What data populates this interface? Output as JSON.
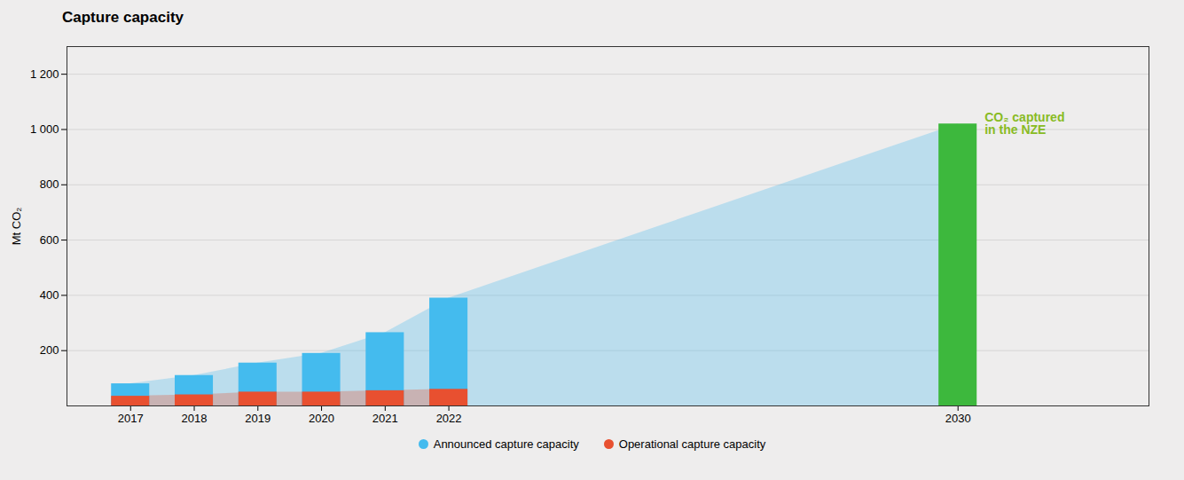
{
  "chart_data": {
    "type": "bar",
    "title": "Capture capacity",
    "y_label": "Mt CO₂",
    "background": "#eeeded",
    "x": [
      2017,
      2018,
      2019,
      2020,
      2021,
      2022,
      2030
    ],
    "series": [
      {
        "name": "Announced capture capacity",
        "color": "#44bbee",
        "values": [
          80,
          110,
          155,
          190,
          265,
          390,
          null
        ]
      },
      {
        "name": "Operational capture capacity",
        "color": "#e85030",
        "values": [
          35,
          40,
          50,
          50,
          55,
          60,
          null
        ]
      },
      {
        "color": "#3db83d",
        "values": [
          null,
          null,
          null,
          null,
          null,
          null,
          1020
        ]
      }
    ],
    "annotations": [
      {
        "x": 2030,
        "y": 1020,
        "lines": [
          "CO₂ captured",
          "in the NZE"
        ],
        "color": "#88bb22"
      }
    ],
    "xlim": [
      2016,
      2033
    ],
    "xticks": [
      2017,
      2018,
      2019,
      2020,
      2021,
      2022,
      2030
    ],
    "ylim": [
      0,
      1300
    ],
    "yticks": [
      200,
      400,
      600,
      800,
      {
        "value": 1000,
        "label": "1 000"
      },
      {
        "value": 1200,
        "label": "1 200"
      }
    ],
    "grid": true
  }
}
